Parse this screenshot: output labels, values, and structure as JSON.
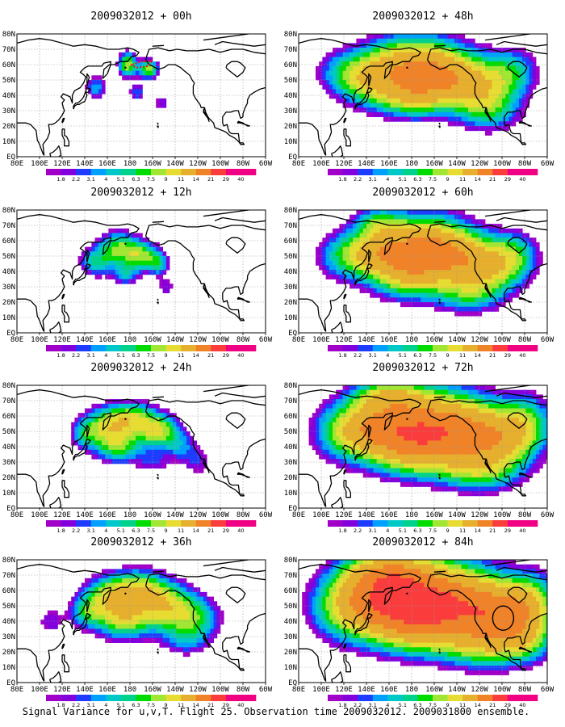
{
  "figure": {
    "caption": "Signal Variance for u,v,T. Flight 25. Observation time 2009032012. 2009031800 ensemble."
  },
  "x_ticks": [
    "80E",
    "100E",
    "120E",
    "140E",
    "160E",
    "180",
    "160W",
    "140W",
    "120W",
    "100W",
    "80W",
    "60W"
  ],
  "y_ticks": [
    "80N",
    "70N",
    "60N",
    "50N",
    "40N",
    "30N",
    "20N",
    "10N",
    "EQ"
  ],
  "colorbar": {
    "labels": [
      "1.8",
      "2.2",
      "3.1",
      "4",
      "5.1",
      "6.3",
      "7.5",
      "9",
      "11",
      "14",
      "21",
      "29",
      "40"
    ],
    "colors": [
      "#a000c8",
      "#8200dc",
      "#1e3cff",
      "#00a0ff",
      "#00c8c8",
      "#00d28c",
      "#00dc00",
      "#a0e632",
      "#e6dc32",
      "#e6af2d",
      "#f08228",
      "#fa3c3c",
      "#f00082"
    ]
  },
  "panels": [
    {
      "title": "2009032012 + 00h",
      "lead_hours": 0
    },
    {
      "title": "2009032012 + 12h",
      "lead_hours": 12
    },
    {
      "title": "2009032012 + 24h",
      "lead_hours": 24
    },
    {
      "title": "2009032012 + 36h",
      "lead_hours": 36
    },
    {
      "title": "2009032012 + 48h",
      "lead_hours": 48
    },
    {
      "title": "2009032012 + 60h",
      "lead_hours": 60
    },
    {
      "title": "2009032012 + 72h",
      "lead_hours": 72
    },
    {
      "title": "2009032012 + 84h",
      "lead_hours": 84
    }
  ],
  "map_extent": {
    "lon_min": 80,
    "lon_max": 300,
    "lat_min": 0,
    "lat_max": 80
  }
}
